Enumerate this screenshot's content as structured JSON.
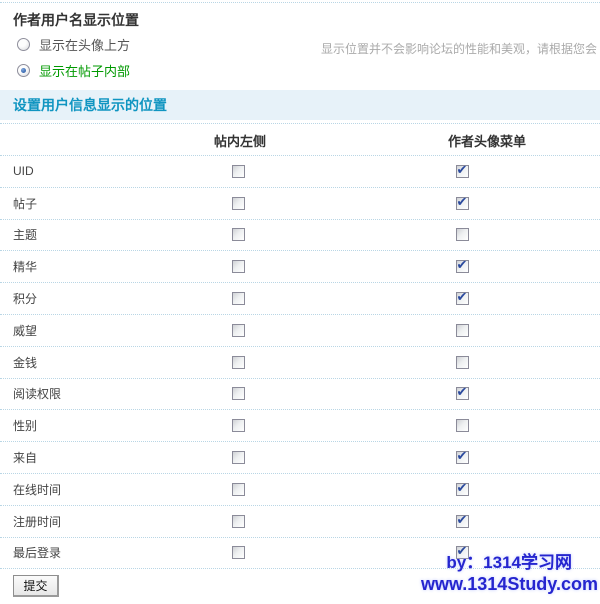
{
  "heading": "作者用户名显示位置",
  "radio_group": {
    "options": [
      {
        "label": "显示在头像上方",
        "selected": false
      },
      {
        "label": "显示在帖子内部",
        "selected": true
      }
    ]
  },
  "helper_text": "显示位置并不会影响论坛的性能和美观，请根据您会",
  "section_title": "设置用户信息显示的位置",
  "table": {
    "columns": [
      "帖内左侧",
      "作者头像菜单"
    ],
    "rows": [
      {
        "label": "UID",
        "post_left": false,
        "avatar_menu": true
      },
      {
        "label": "帖子",
        "post_left": false,
        "avatar_menu": true
      },
      {
        "label": "主题",
        "post_left": false,
        "avatar_menu": false
      },
      {
        "label": "精华",
        "post_left": false,
        "avatar_menu": true
      },
      {
        "label": "积分",
        "post_left": false,
        "avatar_menu": true
      },
      {
        "label": "威望",
        "post_left": false,
        "avatar_menu": false
      },
      {
        "label": "金钱",
        "post_left": false,
        "avatar_menu": false
      },
      {
        "label": "阅读权限",
        "post_left": false,
        "avatar_menu": true
      },
      {
        "label": "性别",
        "post_left": false,
        "avatar_menu": false
      },
      {
        "label": "来自",
        "post_left": false,
        "avatar_menu": true
      },
      {
        "label": "在线时间",
        "post_left": false,
        "avatar_menu": true
      },
      {
        "label": "注册时间",
        "post_left": false,
        "avatar_menu": true
      },
      {
        "label": "最后登录",
        "post_left": false,
        "avatar_menu": true
      }
    ],
    "check_glyph": "✔"
  },
  "submit_label": "提交",
  "watermark": {
    "line1": "by：1314学习网",
    "line2": "www.1314Study.com"
  },
  "colors": {
    "selected_option_green": "#009900",
    "banner_background": "#e7f2f9",
    "banner_text_blue": "#1095c1",
    "dotted_divider_blue": "#b9d6e5",
    "checkmark_blue": "#2b4a9e",
    "radio_dot_blue": "#1c4f9c",
    "watermark_blue": "#2525cf",
    "helper_gray": "#aaaaaa"
  }
}
